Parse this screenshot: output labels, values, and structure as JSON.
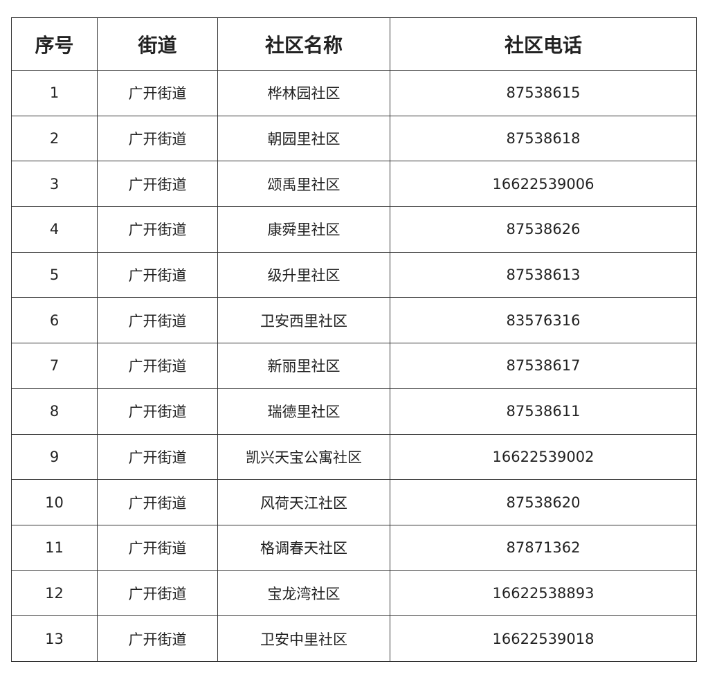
{
  "table": {
    "header": [
      "序号",
      "街道",
      "社区名称",
      "社区电话"
    ],
    "rows": [
      [
        "1",
        "广开街道",
        "桦林园社区",
        "87538615"
      ],
      [
        "2",
        "广开街道",
        "朝园里社区",
        "87538618"
      ],
      [
        "3",
        "广开街道",
        "颂禹里社区",
        "16622539006"
      ],
      [
        "4",
        "广开街道",
        "康舜里社区",
        "87538626"
      ],
      [
        "5",
        "广开街道",
        "级升里社区",
        "87538613"
      ],
      [
        "6",
        "广开街道",
        "卫安西里社区",
        "83576316"
      ],
      [
        "7",
        "广开街道",
        "新丽里社区",
        "87538617"
      ],
      [
        "8",
        "广开街道",
        "瑞德里社区",
        "87538611"
      ],
      [
        "9",
        "广开街道",
        "凯兴天宝公寓社区",
        "16622539002"
      ],
      [
        "10",
        "广开街道",
        "风荷天江社区",
        "87538620"
      ],
      [
        "11",
        "广开街道",
        "格调春天社区",
        "87871362"
      ],
      [
        "12",
        "广开街道",
        "宝龙湾社区",
        "16622538893"
      ],
      [
        "13",
        "广开街道",
        "卫安中里社区",
        "16622539018"
      ]
    ]
  }
}
